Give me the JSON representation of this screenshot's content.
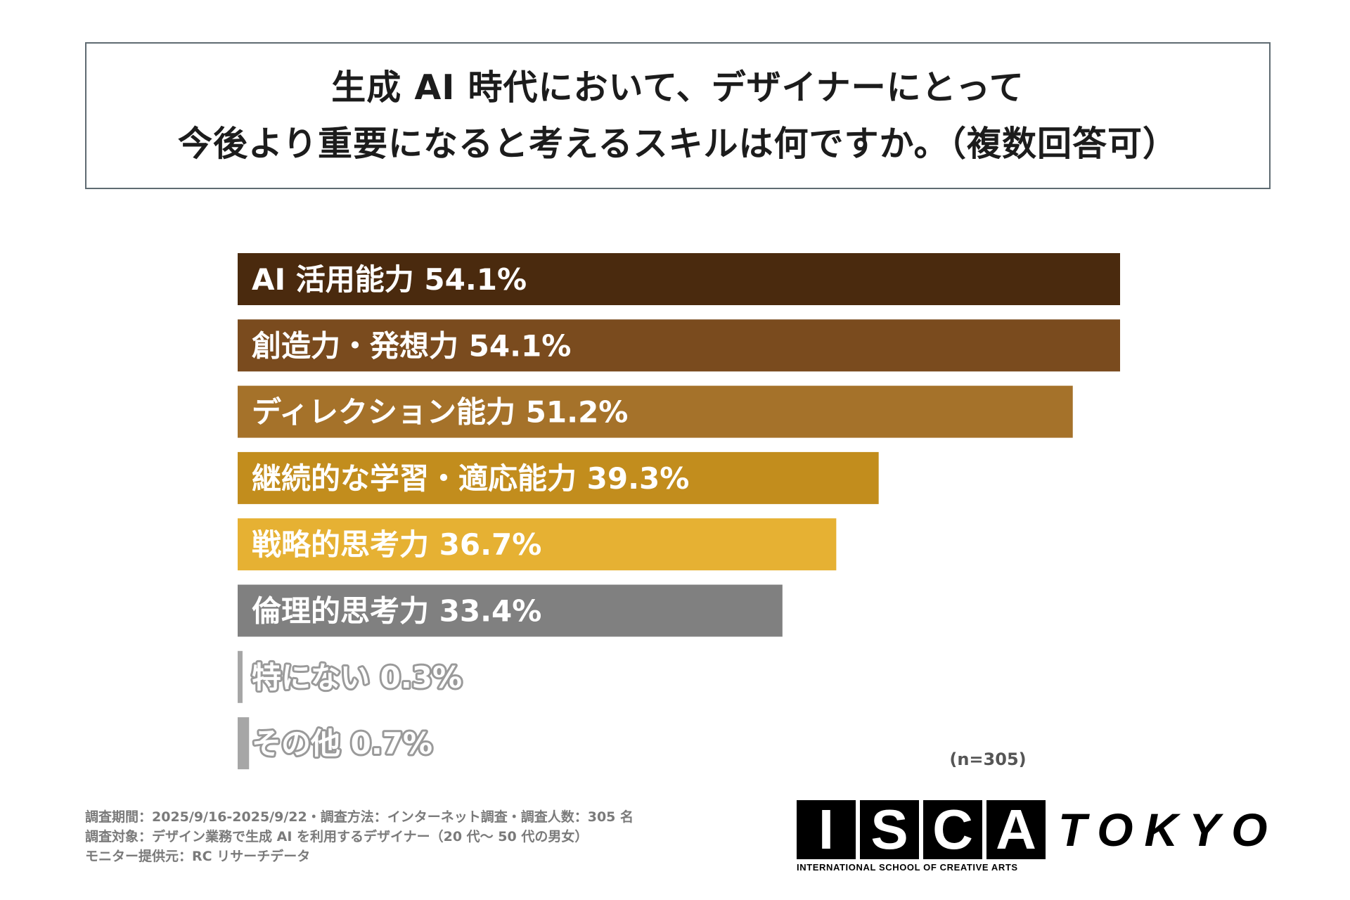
{
  "title": {
    "line1": "生成 AI 時代において、デザイナーにとって",
    "line2": "今後より重要になると考えるスキルは何ですか。（複数回答可）"
  },
  "chart_data": {
    "type": "bar",
    "orientation": "horizontal",
    "categories": [
      "AI 活用能力",
      "創造力・発想力",
      "ディレクション能力",
      "継続的な学習・適応能力",
      "戦略的思考力",
      "倫理的思考力",
      "特にない",
      "その他"
    ],
    "values": [
      54.1,
      54.1,
      51.2,
      39.3,
      36.7,
      33.4,
      0.3,
      0.7
    ],
    "labels": [
      "AI 活用能力  54.1%",
      "創造力・発想力  54.1%",
      "ディレクション能力  51.2%",
      "継続的な学習・適応能力  39.3%",
      "戦略的思考力  36.7%",
      "倫理的思考力  33.4%",
      "特にない  0.3%",
      "その他  0.7%"
    ],
    "colors": [
      "#4a2a0e",
      "#7a4b1e",
      "#a5722a",
      "#c28d1d",
      "#e6b133",
      "#808080",
      "#a6a6a6",
      "#a6a6a6"
    ],
    "xlim": [
      0,
      54.1
    ],
    "grid": false,
    "legend": "none",
    "unit": "%"
  },
  "n_label": "(n=305)",
  "footer": {
    "line1": "調査期間：2025/9/16-2025/9/22・調査方法：インターネット調査・調査人数：305 名",
    "line2": "調査対象：デザイン業務で生成 AI を利用するデザイナー（20 代〜 50 代の男女）",
    "line3": "モニター提供元：RC リサーチデータ"
  },
  "logo": {
    "letters": [
      "I",
      "S",
      "C",
      "A"
    ],
    "tokyo": "TOKYO",
    "subtitle": "INTERNATIONAL SCHOOL OF CREATIVE ARTS"
  }
}
